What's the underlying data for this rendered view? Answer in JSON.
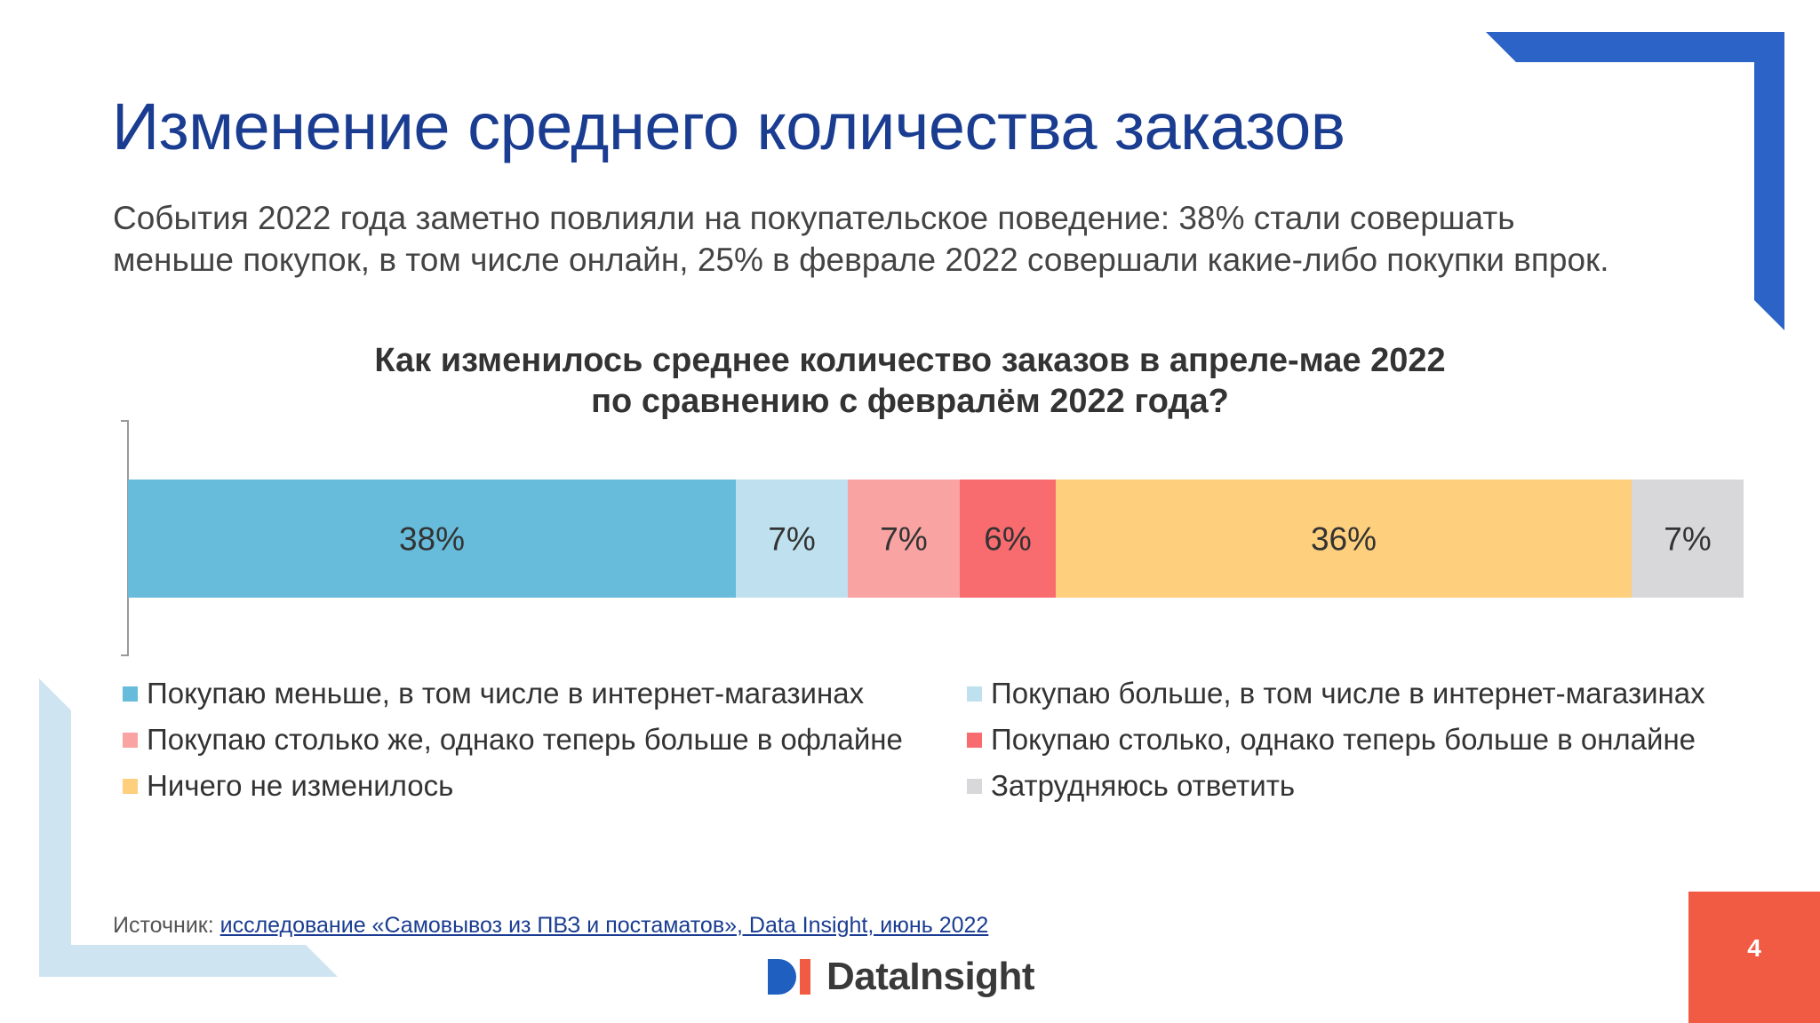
{
  "title": "Изменение среднего количества заказов",
  "subtitle_lines": [
    "События 2022 года заметно повлияли на покупательское поведение: 38% стали совершать",
    "меньше покупок, в том числе онлайн, 25% в феврале 2022 совершали какие-либо покупки впрок."
  ],
  "colors": {
    "accent": "#1a3d91",
    "deco_blue": "#2b63c7",
    "deco_light": "#cfe4f1",
    "page_box": "#f25b43"
  },
  "chart_data": {
    "type": "bar",
    "orientation": "horizontal-stacked-100",
    "title_lines": [
      "Как изменилось среднее количество заказов в апреле-мае 2022",
      "по сравнению с февралём 2022 года?"
    ],
    "series": [
      {
        "name": "Покупаю меньше, в том числе в интернет-магазинах",
        "value": 38,
        "label": "38%",
        "color": "#67bbdb"
      },
      {
        "name": "Покупаю больше, в том числе в интернет-магазинах",
        "value": 7,
        "label": "7%",
        "color": "#bfe1ef"
      },
      {
        "name": "Покупаю столько же, однако теперь больше в офлайне",
        "value": 7,
        "label": "7%",
        "color": "#f9a3a3"
      },
      {
        "name": "Покупаю столько, однако теперь больше в онлайне",
        "value": 6,
        "label": "6%",
        "color": "#f86b6f"
      },
      {
        "name": "Ничего не изменилось",
        "value": 36,
        "label": "36%",
        "color": "#fecf7d"
      },
      {
        "name": "Затрудняюсь ответить",
        "value": 7,
        "label": "7%",
        "color": "#d8d8da"
      }
    ],
    "legend_position": "bottom",
    "grid": false
  },
  "source": {
    "prefix": "Источник:",
    "link_text": "исследование «Самовывоз из ПВЗ и постаматов», Data Insight, июнь 2022"
  },
  "logo": {
    "mark": "DI",
    "text": "DataInsight"
  },
  "page_number": "4"
}
